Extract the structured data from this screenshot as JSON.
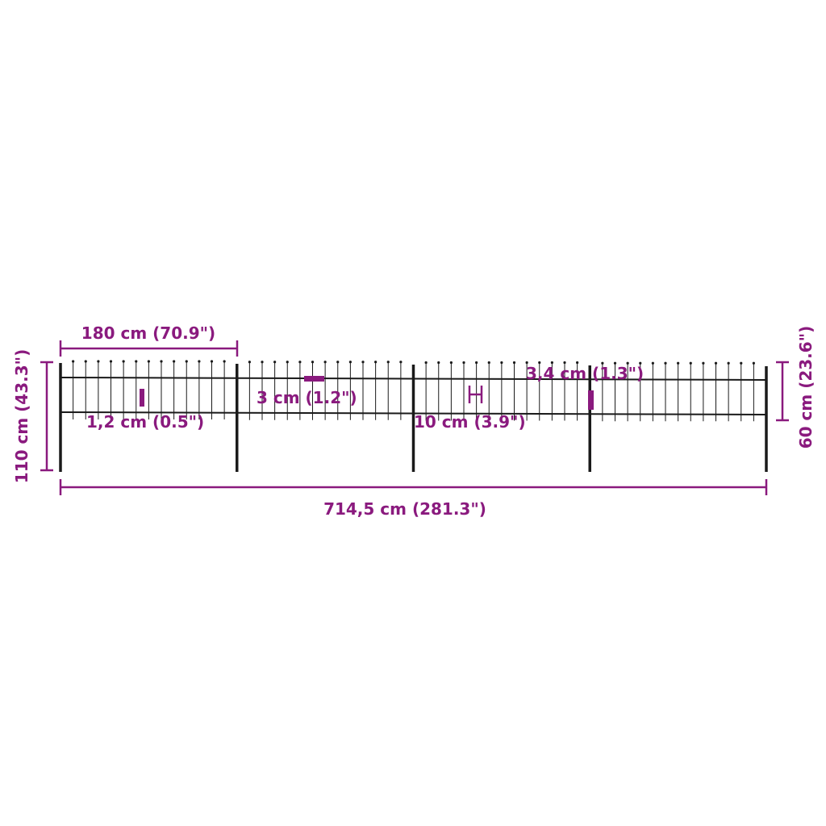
{
  "colors": {
    "dimension": "#8a1a7e",
    "fence": "#1a1a1a"
  },
  "fence": {
    "panels": 4,
    "pickets_per_panel": 13
  },
  "dimensions": {
    "panel_width": "180 cm (70.9\")",
    "total_height": "110 cm (43.3\")",
    "fence_height": "60 cm (23.6\")",
    "total_length": "714,5 cm (281.3\")",
    "picket_spacing": "1,2 cm (0.5\")",
    "rail_width": "3 cm (1.2\")",
    "rail_gap": "10 cm (3.9\")",
    "post_width": "3,4 cm (1.3\")"
  }
}
